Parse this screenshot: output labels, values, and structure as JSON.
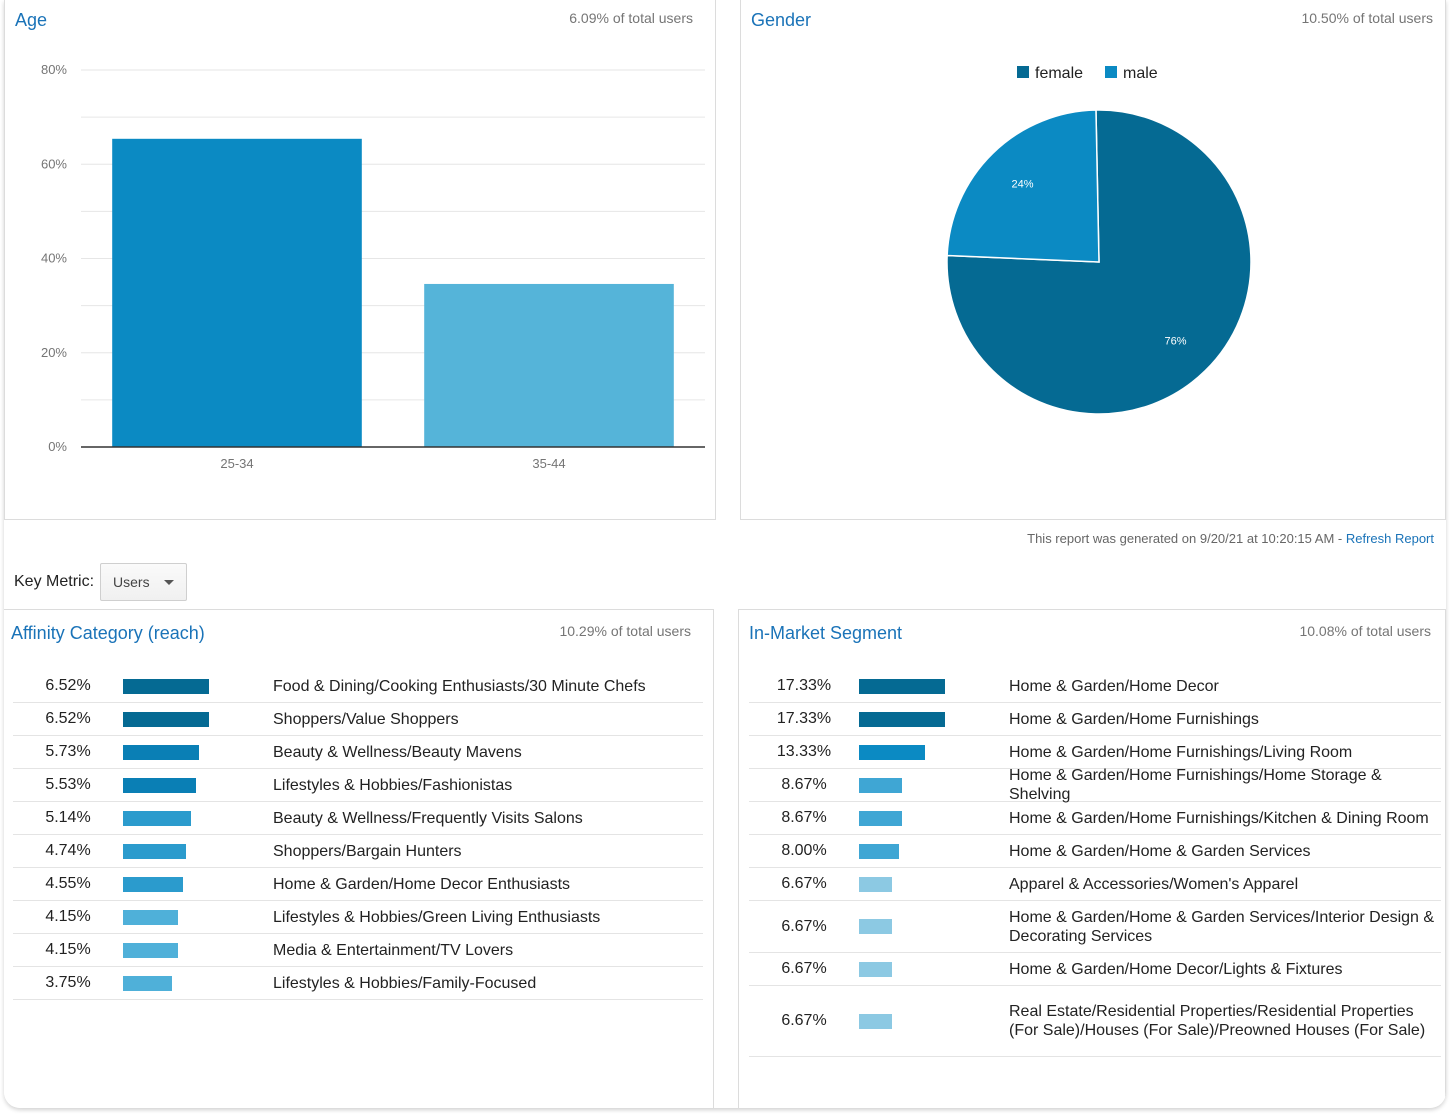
{
  "age": {
    "title": "Age",
    "subtitle": "6.09% of total users"
  },
  "gender": {
    "title": "Gender",
    "subtitle": "10.50% of total users"
  },
  "report": {
    "note": "This report was generated on 9/20/21 at 10:20:15 AM - ",
    "refresh_label": "Refresh Report"
  },
  "key_metric": {
    "label": "Key Metric:",
    "selected": "Users"
  },
  "affinity": {
    "title": "Affinity Category (reach)",
    "subtitle": "10.29% of total users",
    "rows": [
      {
        "pct": "6.52%",
        "value": 6.52,
        "name": "Food & Dining/Cooking Enthusiasts/30 Minute Chefs"
      },
      {
        "pct": "6.52%",
        "value": 6.52,
        "name": "Shoppers/Value Shoppers"
      },
      {
        "pct": "5.73%",
        "value": 5.73,
        "name": "Beauty & Wellness/Beauty Mavens"
      },
      {
        "pct": "5.53%",
        "value": 5.53,
        "name": "Lifestyles & Hobbies/Fashionistas"
      },
      {
        "pct": "5.14%",
        "value": 5.14,
        "name": "Beauty & Wellness/Frequently Visits Salons"
      },
      {
        "pct": "4.74%",
        "value": 4.74,
        "name": "Shoppers/Bargain Hunters"
      },
      {
        "pct": "4.55%",
        "value": 4.55,
        "name": "Home & Garden/Home Decor Enthusiasts"
      },
      {
        "pct": "4.15%",
        "value": 4.15,
        "name": "Lifestyles & Hobbies/Green Living Enthusiasts"
      },
      {
        "pct": "4.15%",
        "value": 4.15,
        "name": "Media & Entertainment/TV Lovers"
      },
      {
        "pct": "3.75%",
        "value": 3.75,
        "name": "Lifestyles & Hobbies/Family-Focused"
      }
    ]
  },
  "inmarket": {
    "title": "In-Market Segment",
    "subtitle": "10.08% of total users",
    "rows": [
      {
        "pct": "17.33%",
        "value": 17.33,
        "name": "Home & Garden/Home Decor"
      },
      {
        "pct": "17.33%",
        "value": 17.33,
        "name": "Home & Garden/Home Furnishings"
      },
      {
        "pct": "13.33%",
        "value": 13.33,
        "name": "Home & Garden/Home Furnishings/Living Room"
      },
      {
        "pct": "8.67%",
        "value": 8.67,
        "name": "Home & Garden/Home Furnishings/Home Storage & Shelving"
      },
      {
        "pct": "8.67%",
        "value": 8.67,
        "name": "Home & Garden/Home Furnishings/Kitchen & Dining Room"
      },
      {
        "pct": "8.00%",
        "value": 8.0,
        "name": "Home & Garden/Home & Garden Services"
      },
      {
        "pct": "6.67%",
        "value": 6.67,
        "name": "Apparel & Accessories/Women's Apparel"
      },
      {
        "pct": "6.67%",
        "value": 6.67,
        "name": "Home & Garden/Home & Garden Services/Interior Design & Decorating Services"
      },
      {
        "pct": "6.67%",
        "value": 6.67,
        "name": "Home & Garden/Home Decor/Lights & Fixtures"
      },
      {
        "pct": "6.67%",
        "value": 6.67,
        "name": "Real Estate/Residential Properties/Residential Properties (For Sale)/Houses (For Sale)/Preowned Houses (For Sale)"
      }
    ]
  },
  "colors": {
    "dark": "#056a93",
    "mid": "#0b8ac3",
    "light": "#55b4d9",
    "lighter": "#8cc9e3",
    "grid": "#e6e6e6",
    "axis": "#333333"
  },
  "chart_data": [
    {
      "type": "bar",
      "title": "Age",
      "categories": [
        "25-34",
        "35-44"
      ],
      "values": [
        65.4,
        34.6
      ],
      "ylim": [
        0,
        80
      ],
      "yticks": [
        "0%",
        "20%",
        "40%",
        "60%",
        "80%"
      ],
      "ytick_values": [
        0,
        20,
        40,
        60,
        80
      ],
      "xlabel": "",
      "ylabel": "",
      "grid": true
    },
    {
      "type": "pie",
      "title": "Gender",
      "categories": [
        "female",
        "male"
      ],
      "values": [
        76,
        24
      ],
      "labels": [
        "76%",
        "24%"
      ],
      "legend": "top"
    }
  ]
}
